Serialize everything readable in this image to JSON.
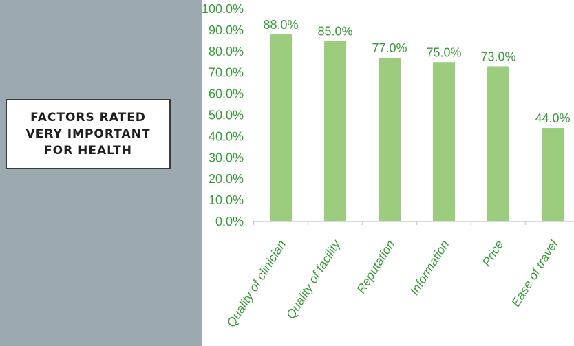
{
  "slide": {
    "title": "FACTORS RATED\nVERY IMPORTANT\nFOR HEALTH"
  },
  "colors": {
    "bar": "#9ccc7e",
    "text": "#3a9a3a",
    "panel": "#9aaab0",
    "axis": "#cfcfcf"
  },
  "chart_data": {
    "type": "bar",
    "categories": [
      "Quality of clinician",
      "Quality of facility",
      "Reputation",
      "Information",
      "Price",
      "Ease of travel"
    ],
    "values": [
      88.0,
      85.0,
      77.0,
      75.0,
      73.0,
      44.0
    ],
    "data_labels": [
      "88.0%",
      "85.0%",
      "77.0%",
      "75.0%",
      "73.0%",
      "44.0%"
    ],
    "ylim": [
      0,
      100
    ],
    "yticks": [
      "0.0%",
      "10.0%",
      "20.0%",
      "30.0%",
      "40.0%",
      "50.0%",
      "60.0%",
      "70.0%",
      "80.0%",
      "90.0%",
      "100.0%"
    ],
    "title": "",
    "xlabel": "",
    "ylabel": "",
    "grid": false,
    "legend": "none"
  }
}
